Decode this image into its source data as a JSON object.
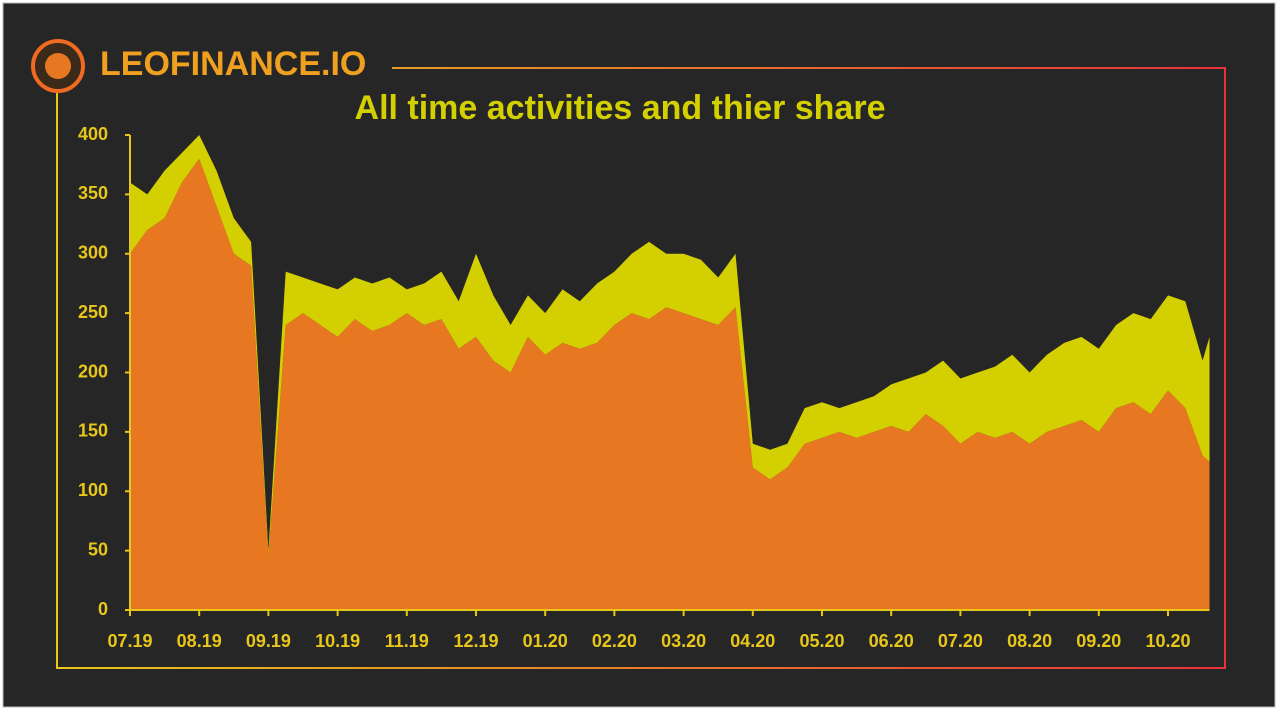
{
  "chart_data": {
    "type": "stacked_area",
    "logo_text": "LEOFINANCE.IO",
    "title": "All time activities and thier share",
    "x": [
      0,
      0.25,
      0.5,
      0.75,
      1,
      1.25,
      1.5,
      1.75,
      2,
      2.25,
      2.5,
      2.75,
      3,
      3.25,
      3.5,
      3.75,
      4,
      4.25,
      4.5,
      4.75,
      5,
      5.25,
      5.5,
      5.75,
      6,
      6.25,
      6.5,
      6.75,
      7,
      7.25,
      7.5,
      7.75,
      8,
      8.25,
      8.5,
      8.75,
      9,
      9.25,
      9.5,
      9.75,
      10,
      10.25,
      10.5,
      10.75,
      11,
      11.25,
      11.5,
      11.75,
      12,
      12.25,
      12.5,
      12.75,
      13,
      13.25,
      13.5,
      13.75,
      14,
      14.25,
      14.5,
      14.75,
      15,
      15.25,
      15.5,
      15.6
    ],
    "series": [
      {
        "color": "#e87722",
        "values": [
          300,
          320,
          330,
          360,
          380,
          340,
          300,
          290,
          45,
          240,
          250,
          240,
          230,
          245,
          235,
          240,
          250,
          240,
          245,
          220,
          230,
          210,
          200,
          230,
          215,
          225,
          220,
          225,
          240,
          250,
          245,
          255,
          250,
          245,
          240,
          255,
          120,
          110,
          120,
          140,
          145,
          150,
          145,
          150,
          155,
          150,
          165,
          155,
          140,
          150,
          145,
          150,
          140,
          150,
          155,
          160,
          150,
          170,
          175,
          165,
          185,
          170,
          130,
          125
        ]
      },
      {
        "color": "#d4cf00",
        "values": [
          60,
          30,
          40,
          25,
          20,
          30,
          30,
          20,
          5,
          45,
          30,
          35,
          40,
          35,
          40,
          40,
          20,
          35,
          40,
          40,
          70,
          55,
          40,
          35,
          35,
          45,
          40,
          50,
          45,
          50,
          65,
          45,
          50,
          50,
          40,
          45,
          20,
          25,
          20,
          30,
          30,
          20,
          30,
          30,
          35,
          45,
          35,
          55,
          55,
          50,
          60,
          65,
          60,
          65,
          70,
          70,
          70,
          70,
          75,
          80,
          80,
          90,
          80,
          105
        ]
      }
    ],
    "xlim": [
      0,
      15.6
    ],
    "xticks": [
      {
        "value": 0,
        "label": "07.19"
      },
      {
        "value": 1,
        "label": "08.19"
      },
      {
        "value": 2,
        "label": "09.19"
      },
      {
        "value": 3,
        "label": "10.19"
      },
      {
        "value": 4,
        "label": "11.19"
      },
      {
        "value": 5,
        "label": "12.19"
      },
      {
        "value": 6,
        "label": "01.20"
      },
      {
        "value": 7,
        "label": "02.20"
      },
      {
        "value": 8,
        "label": "03.20"
      },
      {
        "value": 9,
        "label": "04.20"
      },
      {
        "value": 10,
        "label": "05.20"
      },
      {
        "value": 11,
        "label": "06.20"
      },
      {
        "value": 12,
        "label": "07.20"
      },
      {
        "value": 13,
        "label": "08.20"
      },
      {
        "value": 14,
        "label": "09.20"
      },
      {
        "value": 15,
        "label": "10.20"
      }
    ],
    "ylim": [
      0,
      400
    ],
    "yticks": [
      0,
      50,
      100,
      150,
      200,
      250,
      300,
      350,
      400
    ]
  }
}
